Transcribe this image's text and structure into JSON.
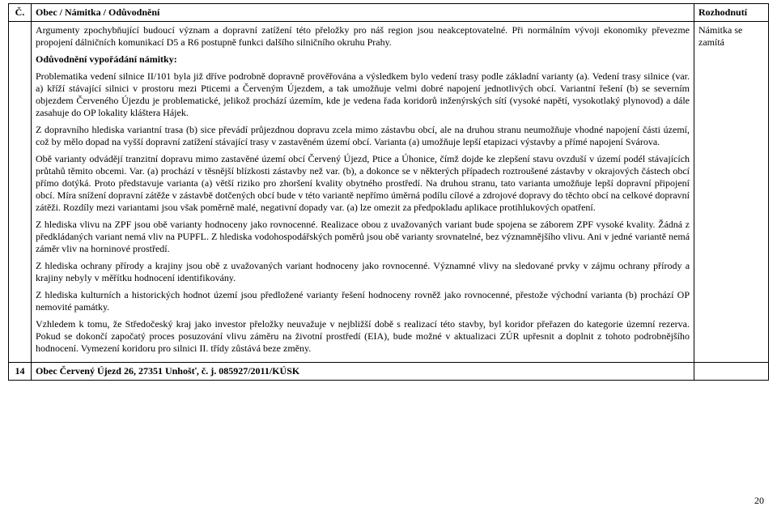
{
  "header": {
    "col_num": "Č.",
    "col_main": "Obec / Námitka / Odůvodnění",
    "col_dec": "Rozhodnutí"
  },
  "body": {
    "p1": "Argumenty zpochybňující budoucí význam a dopravní zatížení této přeložky pro náš region jsou neakceptovatelné. Při normálním vývoji ekonomiky převezme propojení dálničních komunikací D5 a R6 postupně funkci dalšího silničního okruhu Prahy.",
    "subhead": "Odůvodnění vypořádání námitky:",
    "p2": "Problematika vedení silnice II/101 byla již dříve podrobně dopravně prověřována a výsledkem bylo vedení trasy podle základní varianty (a). Vedení trasy silnice (var. a) kříží stávající silnici v prostoru mezi Pticemi a Červeným Újezdem, a tak umožňuje velmi dobré napojení jednotlivých obcí. Variantní řešení (b) se severním objezdem Červeného Újezdu je problematické, jelikož prochází územím, kde je vedena řada koridorů inženýrských sítí (vysoké napětí, vysokotlaký plynovod) a dále zasahuje do OP lokality kláštera Hájek.",
    "p3": "Z dopravního hlediska variantní trasa (b) sice převádí průjezdnou dopravu zcela mimo zástavbu obcí, ale na druhou stranu neumožňuje vhodné napojení části území, což by mělo dopad na vyšší dopravní zatížení stávající trasy v zastavěném území obcí. Varianta (a) umožňuje lepší etapizaci výstavby a přímé napojení Svárova.",
    "p4": "Obě varianty odvádějí tranzitní dopravu mimo zastavěné území obcí Červený Újezd, Ptice a Úhonice, čímž dojde ke zlepšení stavu ovzduší v území podél stávajících průtahů těmito obcemi. Var. (a) prochází v těsnější blízkosti zástavby než var. (b), a dokonce se v některých případech roztroušené zástavby v okrajových částech obcí přímo dotýká. Proto představuje varianta (a) větší riziko pro zhoršení kvality obytného prostředí. Na druhou stranu, tato varianta umožňuje lepší dopravní připojení obcí. Míra snížení dopravní zátěže v zástavbě dotčených obcí bude v této variantě nepřímo úměrná podílu cílové a zdrojové dopravy do těchto obcí na celkové dopravní zátěži. Rozdíly mezi variantami jsou však poměrně malé, negativní dopady var. (a) lze omezit za předpokladu aplikace protihlukových opatření.",
    "p5": "Z hlediska vlivu na ZPF jsou obě varianty hodnoceny jako rovnocenné. Realizace obou z uvažovaných variant bude spojena se záborem ZPF vysoké kvality. Žádná z předkládaných variant nemá vliv na PUPFL. Z hlediska vodohospodářských poměrů jsou obě varianty srovnatelné, bez významnějšího vlivu. Ani v jedné variantě nemá záměr vliv na horninové prostředí.",
    "p6": "Z hlediska ochrany přírody a krajiny jsou obě z uvažovaných variant hodnoceny jako rovnocenné. Významné vlivy na sledované prvky v zájmu ochrany přírody a krajiny nebyly v měřítku hodnocení identifikovány.",
    "p7": "Z hlediska kulturních a historických hodnot území jsou předložené varianty řešení hodnoceny rovněž jako rovnocenné, přestože východní varianta (b) prochází OP nemovité památky.",
    "p8": "Vzhledem k tomu, že Středočeský kraj jako investor přeložky neuvažuje v nejbližší době s realizací této stavby, byl koridor přeřazen do kategorie územní rezerva. Pokud se dokončí započatý proces posuzování vlivu záměru na životní prostředí (EIA), bude možné v aktualizaci ZÚR upřesnit a doplnit z tohoto podrobnějšího hodnocení. Vymezení koridoru pro silnici II. třídy zůstává beze změny."
  },
  "decision": "Námitka se zamítá",
  "row14": {
    "num": "14",
    "title": "Obec Červený Újezd 26, 27351 Unhošť, č. j. 085927/2011/KÚSK"
  },
  "page_number": "20"
}
